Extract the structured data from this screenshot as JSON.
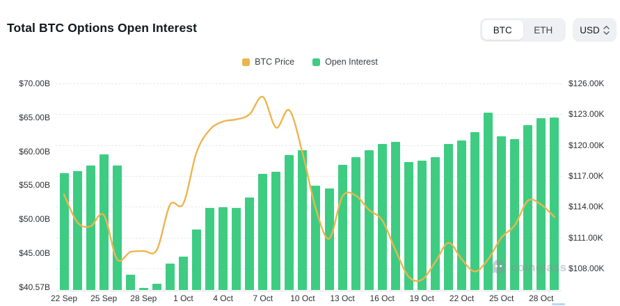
{
  "header": {
    "title": "Total BTC Options Open Interest",
    "tabs": [
      "BTC",
      "ETH"
    ],
    "selected_tab": "BTC",
    "currency": "USD"
  },
  "legend": [
    {
      "label": "BTC Price",
      "color": "#ecb54e"
    },
    {
      "label": "Open Interest",
      "color": "#3ecc82"
    }
  ],
  "watermark": "coinglass",
  "chart_data": {
    "type": "bar+line",
    "title": "Total BTC Options Open Interest",
    "grid": "dashed-horizontal",
    "legend_position": "top-center",
    "categories": [
      "22 Sep",
      "23 Sep",
      "24 Sep",
      "25 Sep",
      "26 Sep",
      "27 Sep",
      "28 Sep",
      "29 Sep",
      "30 Sep",
      "1 Oct",
      "2 Oct",
      "3 Oct",
      "4 Oct",
      "5 Oct",
      "6 Oct",
      "7 Oct",
      "8 Oct",
      "9 Oct",
      "10 Oct",
      "11 Oct",
      "12 Oct",
      "13 Oct",
      "14 Oct",
      "15 Oct",
      "16 Oct",
      "17 Oct",
      "18 Oct",
      "19 Oct",
      "20 Oct",
      "21 Oct",
      "22 Oct",
      "23 Oct",
      "24 Oct",
      "25 Oct",
      "26 Oct",
      "27 Oct",
      "28 Oct",
      "29 Oct"
    ],
    "x_tick_every": 3,
    "x_tick_labels": [
      "22 Sep",
      "25 Sep",
      "28 Sep",
      "1 Oct",
      "4 Oct",
      "7 Oct",
      "10 Oct",
      "13 Oct",
      "16 Oct",
      "19 Oct",
      "22 Oct",
      "25 Oct",
      "28 Oct"
    ],
    "series": [
      {
        "name": "Open Interest",
        "type": "bar",
        "axis": "left",
        "unit": "USD billions",
        "color": "#3ecc82",
        "values": [
          57.2,
          57.5,
          58.3,
          59.9,
          58.3,
          42.8,
          40.9,
          41.5,
          44.4,
          45.4,
          49.2,
          52.3,
          52.4,
          52.3,
          53.8,
          57.1,
          57.4,
          59.8,
          60.5,
          55.5,
          55.1,
          58.4,
          59.5,
          60.5,
          61.4,
          61.7,
          58.8,
          59.0,
          59.5,
          61.4,
          61.9,
          63.1,
          65.8,
          62.5,
          62.1,
          64.1,
          65.1,
          65.2
        ]
      },
      {
        "name": "BTC Price",
        "type": "line",
        "axis": "right",
        "unit": "USD thousands",
        "color": "#ecb54e",
        "values": [
          115.2,
          112.5,
          112.1,
          113.2,
          108.9,
          109.6,
          109.7,
          109.8,
          114.2,
          114.3,
          119.3,
          121.5,
          122.3,
          122.5,
          123.0,
          124.7,
          121.7,
          123.4,
          119.2,
          113.8,
          110.9,
          115.0,
          115.1,
          113.7,
          112.7,
          109.8,
          107.2,
          106.9,
          108.6,
          110.5,
          108.9,
          107.7,
          108.9,
          111.0,
          112.2,
          114.6,
          114.2,
          113.0
        ]
      }
    ],
    "left_axis": {
      "tick_labels": [
        "$70.00B",
        "$65.00B",
        "$60.00B",
        "$55.00B",
        "$50.00B",
        "$45.00B",
        "$40.57B"
      ],
      "tick_values": [
        70,
        65,
        60,
        55,
        50,
        45,
        40.57
      ],
      "range": [
        40.57,
        70
      ]
    },
    "right_axis": {
      "tick_labels": [
        "$126.00K",
        "$123.00K",
        "$120.00K",
        "$117.00K",
        "$114.00K",
        "$111.00K",
        "$108.00K"
      ],
      "tick_values": [
        126,
        123,
        120,
        117,
        114,
        111,
        108
      ],
      "tick_step": 3
    }
  }
}
